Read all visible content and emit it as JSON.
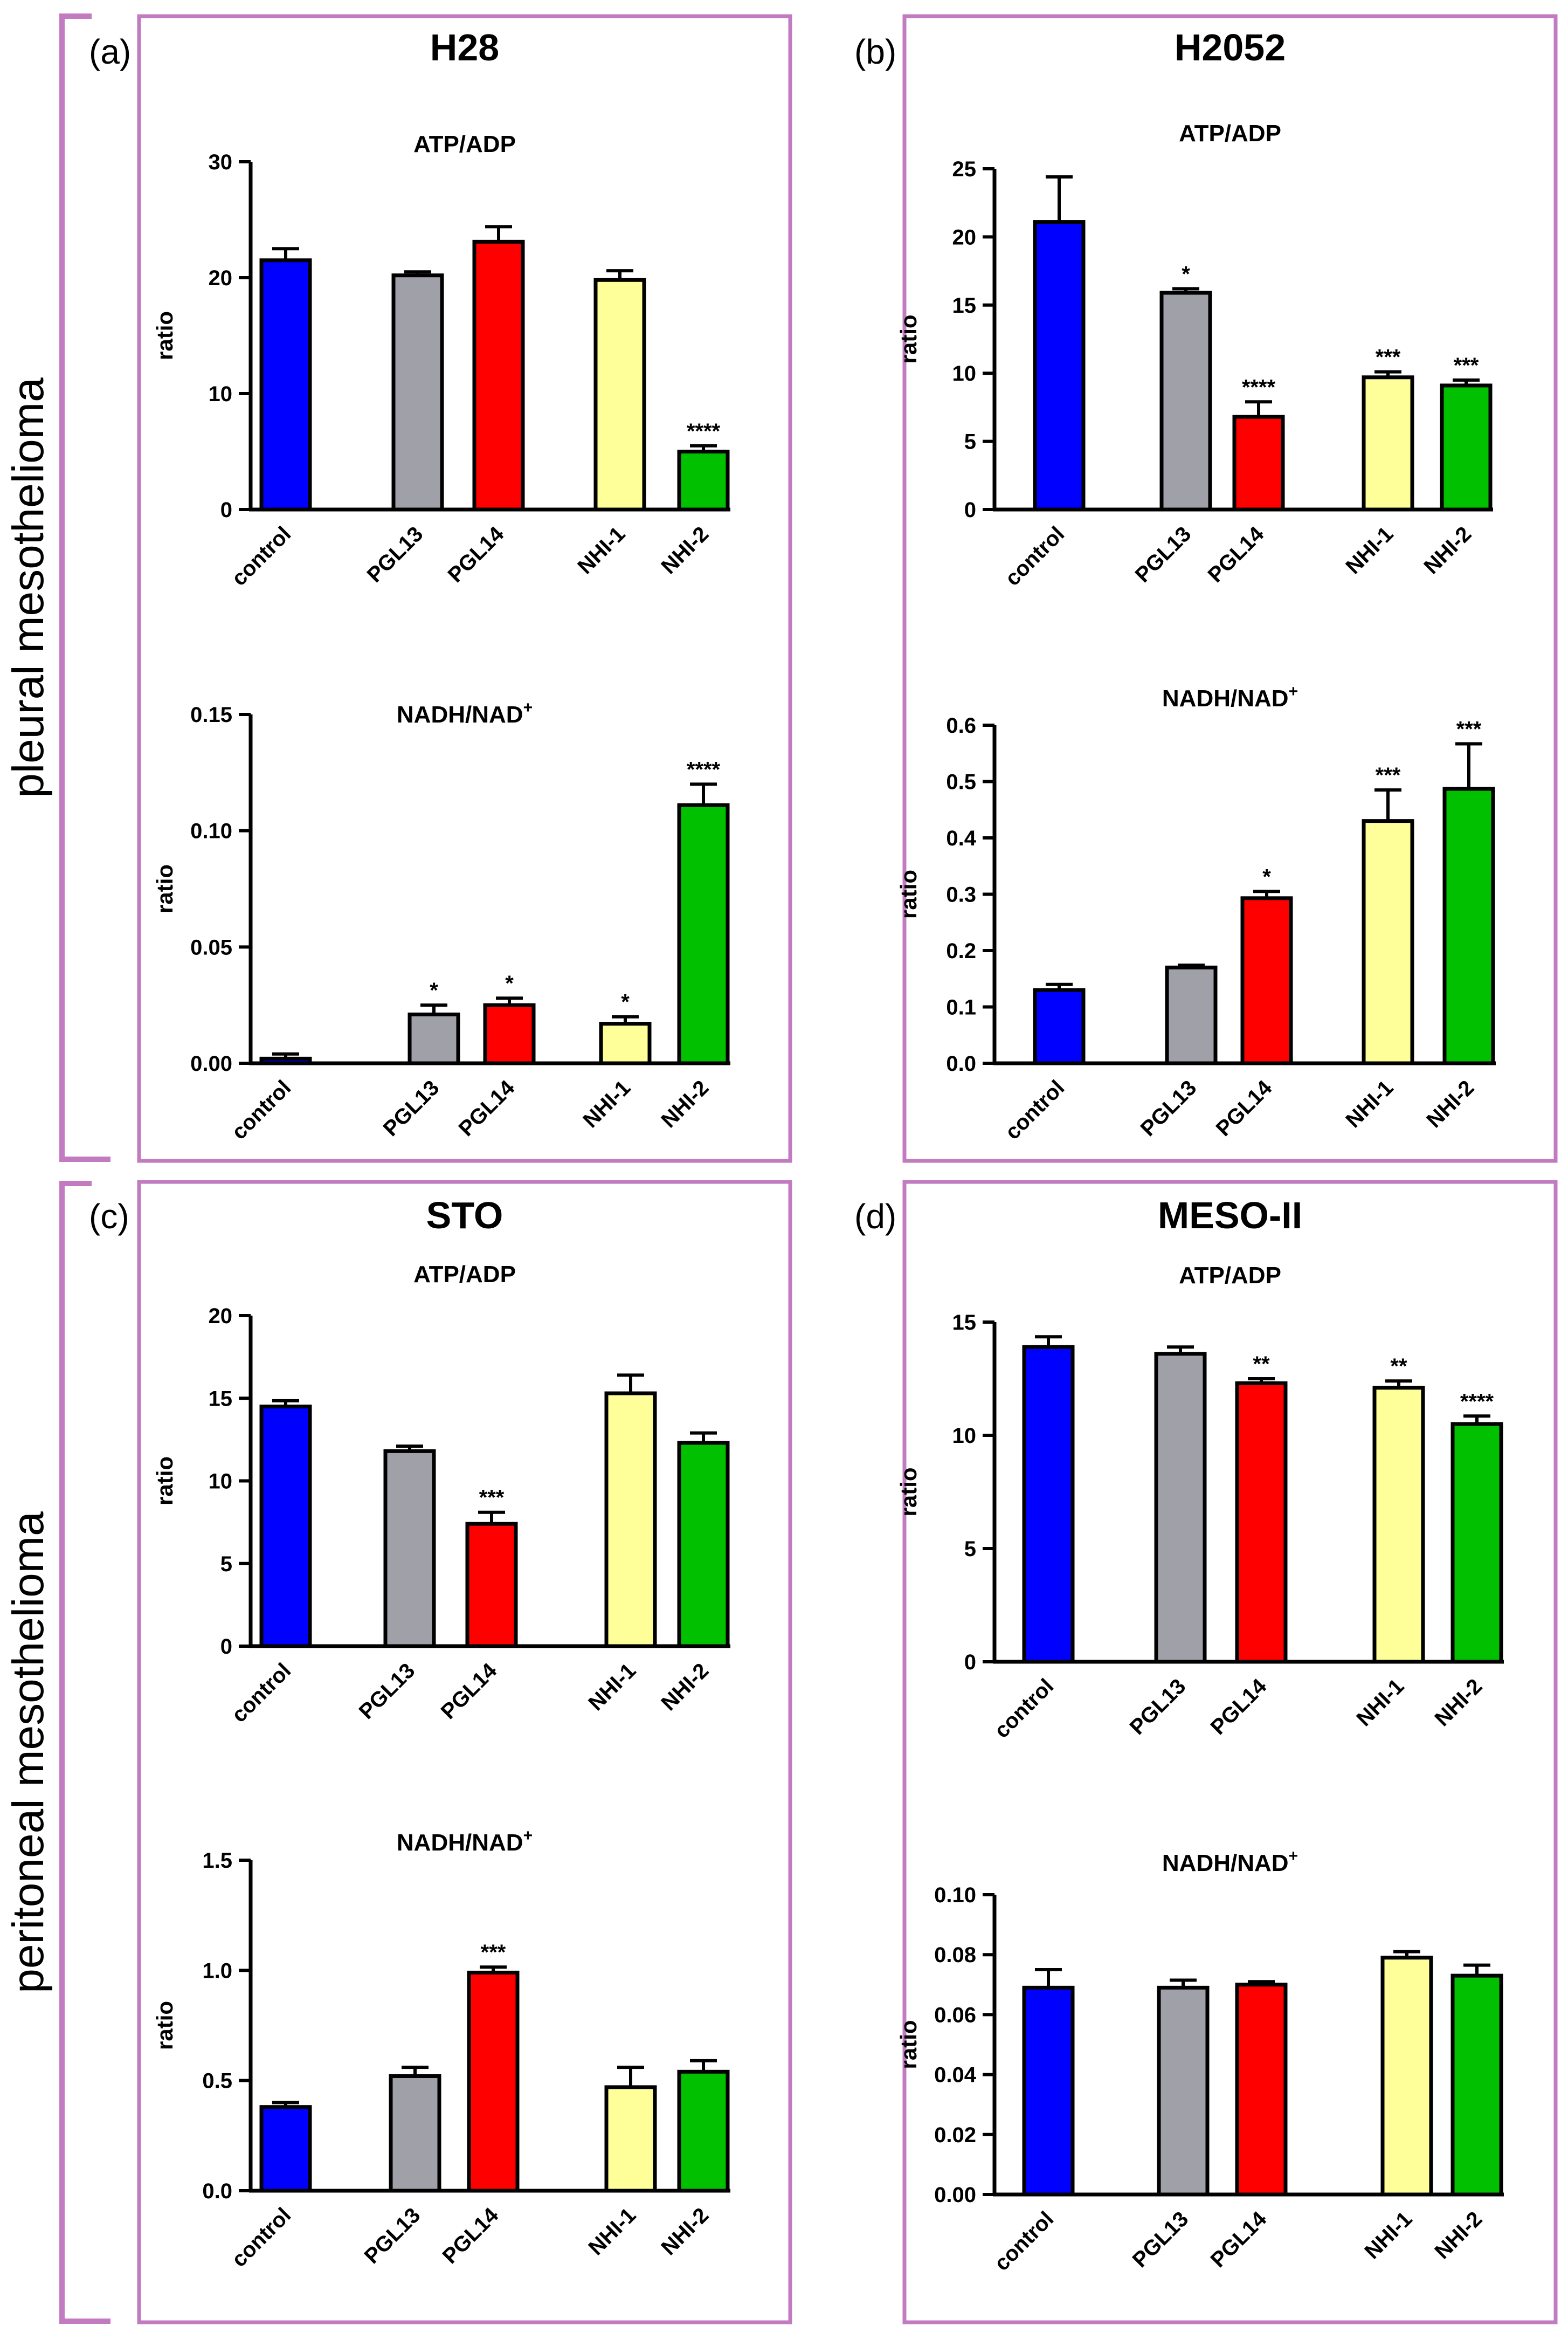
{
  "groups": [
    {
      "label": "pleural mesothelioma",
      "color": "#c27bc0"
    },
    {
      "label": "peritoneal mesothelioma",
      "color": "#c27bc0"
    }
  ],
  "cells": [
    {
      "letter": "(a)",
      "title": "H28"
    },
    {
      "letter": "(b)",
      "title": "H2052"
    },
    {
      "letter": "(c)",
      "title": "STO"
    },
    {
      "letter": "(d)",
      "title": "MESO-II"
    }
  ],
  "colors": {
    "control": "#0000ff",
    "PGL13": "#a0a0a8",
    "PGL14": "#ff0000",
    "NHI-1": "#ffff99",
    "NHI-2": "#00c000",
    "frame": "#c27bc0"
  },
  "chart_data": [
    {
      "type": "bar",
      "cell": 0,
      "title": "ATP/ADP",
      "title_sup": "",
      "ylabel": "ratio",
      "categories": [
        "control",
        "PGL13",
        "PGL14",
        "NHI-1",
        "NHI-2"
      ],
      "values": [
        21.5,
        20.2,
        23.1,
        19.8,
        5.0
      ],
      "errors": [
        1.0,
        0.3,
        1.3,
        0.8,
        0.5
      ],
      "significance": [
        "",
        "",
        "",
        "",
        "****"
      ],
      "ylim": [
        0,
        30
      ],
      "yticks": [
        0,
        10,
        20,
        30
      ],
      "ytick_labels": [
        "0",
        "10",
        "20",
        "30"
      ]
    },
    {
      "type": "bar",
      "cell": 0,
      "title": "NADH/NAD",
      "title_sup": "+",
      "ylabel": "ratio",
      "categories": [
        "control",
        "PGL13",
        "PGL14",
        "NHI-1",
        "NHI-2"
      ],
      "values": [
        0.002,
        0.021,
        0.025,
        0.017,
        0.111
      ],
      "errors": [
        0.002,
        0.004,
        0.003,
        0.003,
        0.009
      ],
      "significance": [
        "",
        "*",
        "*",
        "*",
        "****"
      ],
      "ylim": [
        0,
        0.15
      ],
      "yticks": [
        0,
        0.05,
        0.1,
        0.15
      ],
      "ytick_labels": [
        "0.00",
        "0.05",
        "0.10",
        "0.15"
      ]
    },
    {
      "type": "bar",
      "cell": 1,
      "title": "ATP/ADP",
      "title_sup": "",
      "ylabel": "ratio",
      "categories": [
        "control",
        "PGL13",
        "PGL14",
        "NHI-1",
        "NHI-2"
      ],
      "values": [
        21.1,
        15.9,
        6.8,
        9.7,
        9.1
      ],
      "errors": [
        3.3,
        0.3,
        1.1,
        0.4,
        0.4
      ],
      "significance": [
        "",
        "*",
        "****",
        "***",
        "***"
      ],
      "ylim": [
        0,
        25
      ],
      "yticks": [
        0,
        5,
        10,
        15,
        20,
        25
      ],
      "ytick_labels": [
        "0",
        "5",
        "10",
        "15",
        "20",
        "25"
      ]
    },
    {
      "type": "bar",
      "cell": 1,
      "title": "NADH/NAD",
      "title_sup": "+",
      "ylabel": "ratio",
      "categories": [
        "control",
        "PGL13",
        "PGL14",
        "NHI-1",
        "NHI-2"
      ],
      "values": [
        0.13,
        0.17,
        0.293,
        0.43,
        0.487
      ],
      "errors": [
        0.01,
        0.004,
        0.012,
        0.055,
        0.08
      ],
      "significance": [
        "",
        "",
        "*",
        "***",
        "***"
      ],
      "ylim": [
        0,
        0.6
      ],
      "yticks": [
        0,
        0.1,
        0.2,
        0.3,
        0.4,
        0.5,
        0.6
      ],
      "ytick_labels": [
        "0.0",
        "0.1",
        "0.2",
        "0.3",
        "0.4",
        "0.5",
        "0.6"
      ]
    },
    {
      "type": "bar",
      "cell": 2,
      "title": "ATP/ADP",
      "title_sup": "",
      "ylabel": "ratio",
      "categories": [
        "control",
        "PGL13",
        "PGL14",
        "NHI-1",
        "NHI-2"
      ],
      "values": [
        14.5,
        11.8,
        7.4,
        15.3,
        12.3
      ],
      "errors": [
        0.35,
        0.3,
        0.7,
        1.1,
        0.6
      ],
      "significance": [
        "",
        "",
        "***",
        "",
        ""
      ],
      "ylim": [
        0,
        20
      ],
      "yticks": [
        0,
        5,
        10,
        15,
        20
      ],
      "ytick_labels": [
        "0",
        "5",
        "10",
        "15",
        "20"
      ]
    },
    {
      "type": "bar",
      "cell": 2,
      "title": "NADH/NAD",
      "title_sup": "+",
      "ylabel": "ratio",
      "categories": [
        "control",
        "PGL13",
        "PGL14",
        "NHI-1",
        "NHI-2"
      ],
      "values": [
        0.38,
        0.52,
        0.99,
        0.47,
        0.54
      ],
      "errors": [
        0.02,
        0.04,
        0.025,
        0.09,
        0.05
      ],
      "significance": [
        "",
        "",
        "***",
        "",
        ""
      ],
      "ylim": [
        0,
        1.5
      ],
      "yticks": [
        0,
        0.5,
        1,
        1.5
      ],
      "ytick_labels": [
        "0.0",
        "0.5",
        "1.0",
        "1.5"
      ]
    },
    {
      "type": "bar",
      "cell": 3,
      "title": "ATP/ADP",
      "title_sup": "",
      "ylabel": "ratio",
      "categories": [
        "control",
        "PGL13",
        "PGL14",
        "NHI-1",
        "NHI-2"
      ],
      "values": [
        13.9,
        13.6,
        12.3,
        12.1,
        10.5
      ],
      "errors": [
        0.45,
        0.3,
        0.2,
        0.3,
        0.35
      ],
      "significance": [
        "",
        "",
        "**",
        "**",
        "****"
      ],
      "ylim": [
        0,
        15
      ],
      "yticks": [
        0,
        5,
        10,
        15
      ],
      "ytick_labels": [
        "0",
        "5",
        "10",
        "15"
      ]
    },
    {
      "type": "bar",
      "cell": 3,
      "title": "NADH/NAD",
      "title_sup": "+",
      "ylabel": "ratio",
      "categories": [
        "control",
        "PGL13",
        "PGL14",
        "NHI-1",
        "NHI-2"
      ],
      "values": [
        0.069,
        0.069,
        0.07,
        0.079,
        0.073
      ],
      "errors": [
        0.006,
        0.0025,
        0.001,
        0.002,
        0.0035
      ],
      "significance": [
        "",
        "",
        "",
        "",
        ""
      ],
      "ylim": [
        0,
        0.1
      ],
      "yticks": [
        0,
        0.02,
        0.04,
        0.06,
        0.08,
        0.1
      ],
      "ytick_labels": [
        "0.00",
        "0.02",
        "0.04",
        "0.06",
        "0.08",
        "0.10"
      ]
    }
  ]
}
